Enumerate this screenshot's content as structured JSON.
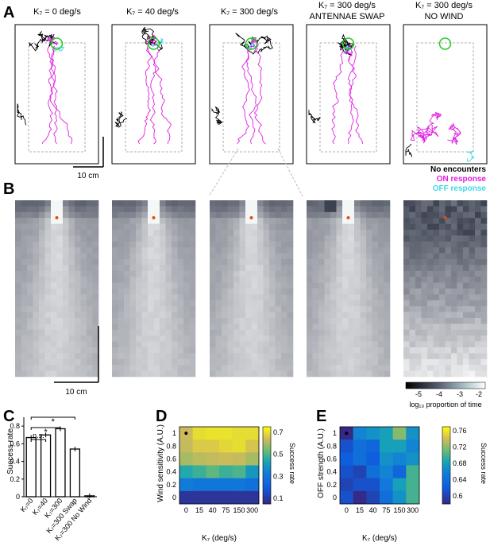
{
  "figure": {
    "panel_letters": [
      "A",
      "B",
      "C",
      "D",
      "E"
    ],
    "conditions": [
      {
        "title": "K₇ = 0 deg/s",
        "subtitle": ""
      },
      {
        "title": "K₇ = 40 deg/s",
        "subtitle": ""
      },
      {
        "title": "K₇ = 300 deg/s",
        "subtitle": ""
      },
      {
        "title": "K₇ = 300 deg/s",
        "subtitle": "ANTENNAE SWAP"
      },
      {
        "title": "K₇ = 300 deg/s",
        "subtitle": "NO WIND"
      }
    ],
    "scalebar_a": "10 cm",
    "scalebar_b": "10 cm",
    "legend": [
      {
        "label": "No encounters",
        "color": "#000000"
      },
      {
        "label": "ON response",
        "color": "#e020e0"
      },
      {
        "label": "OFF response",
        "color": "#40d8e8"
      }
    ],
    "colorbar_b": {
      "ticks": [
        "-5",
        "-4",
        "-3",
        "-2"
      ],
      "label": "log₁₀ proportion of time"
    }
  },
  "chart_data": [
    {
      "panel": "C",
      "type": "bar",
      "ylabel": "Success rate",
      "ylim": [
        0,
        0.9
      ],
      "yticks": [
        "0",
        "0.2",
        "0.4",
        "0.6",
        "0.8"
      ],
      "categories": [
        "K₇=0",
        "K₇=40",
        "K₇=300",
        "K₇=300 Swap",
        "K₇=300 No Wind"
      ],
      "values": [
        0.67,
        0.7,
        0.77,
        0.54,
        0.01
      ],
      "significance": [
        {
          "pair": [
            0,
            1
          ],
          "label": "n.s."
        },
        {
          "pair": [
            0,
            2
          ],
          "label": "*"
        },
        {
          "pair": [
            0,
            3
          ],
          "label": "*"
        }
      ]
    },
    {
      "panel": "D",
      "type": "heatmap",
      "xlabel": "K₇ (deg/s)",
      "ylabel": "Wind sensitivity (A.U.)",
      "x_ticks": [
        "0",
        "15",
        "40",
        "75",
        "150",
        "300"
      ],
      "y_ticks": [
        "1",
        "0.8",
        "0.6",
        "0.4",
        "0.2",
        "0"
      ],
      "colorbar_label": "Success rate",
      "colorbar_ticks": [
        "0.7",
        "0.5",
        "0.3",
        "0.1"
      ],
      "vmin": 0.05,
      "vmax": 0.75,
      "values": [
        [
          0.64,
          0.7,
          0.71,
          0.71,
          0.7,
          0.7
        ],
        [
          0.63,
          0.67,
          0.67,
          0.69,
          0.7,
          0.66
        ],
        [
          0.6,
          0.62,
          0.63,
          0.64,
          0.63,
          0.6
        ],
        [
          0.45,
          0.48,
          0.52,
          0.48,
          0.5,
          0.4
        ],
        [
          0.32,
          0.3,
          0.3,
          0.3,
          0.3,
          0.28
        ],
        [
          0.08,
          0.08,
          0.08,
          0.08,
          0.08,
          0.08
        ]
      ],
      "marker": {
        "row": 0,
        "col": 0
      }
    },
    {
      "panel": "E",
      "type": "heatmap",
      "xlabel": "K₇ (deg/s)",
      "ylabel": "OFF strength (A.U.)",
      "x_ticks": [
        "0",
        "15",
        "40",
        "75",
        "150",
        "300"
      ],
      "y_ticks": [
        "1",
        "0.8",
        "0.6",
        "0.4",
        "0.2",
        "0"
      ],
      "colorbar_label": "Success rate",
      "colorbar_ticks": [
        "0.76",
        "0.72",
        "0.68",
        "0.64",
        "0.6"
      ],
      "vmin": 0.58,
      "vmax": 0.77,
      "values": [
        [
          0.58,
          0.66,
          0.67,
          0.68,
          0.72,
          0.67
        ],
        [
          0.61,
          0.64,
          0.63,
          0.68,
          0.68,
          0.66
        ],
        [
          0.62,
          0.64,
          0.62,
          0.67,
          0.66,
          0.67
        ],
        [
          0.61,
          0.6,
          0.64,
          0.66,
          0.63,
          0.7
        ],
        [
          0.6,
          0.61,
          0.61,
          0.65,
          0.68,
          0.7
        ],
        [
          0.61,
          0.58,
          0.6,
          0.64,
          0.67,
          0.7
        ]
      ],
      "marker": {
        "row": 0,
        "col": 0
      }
    }
  ]
}
